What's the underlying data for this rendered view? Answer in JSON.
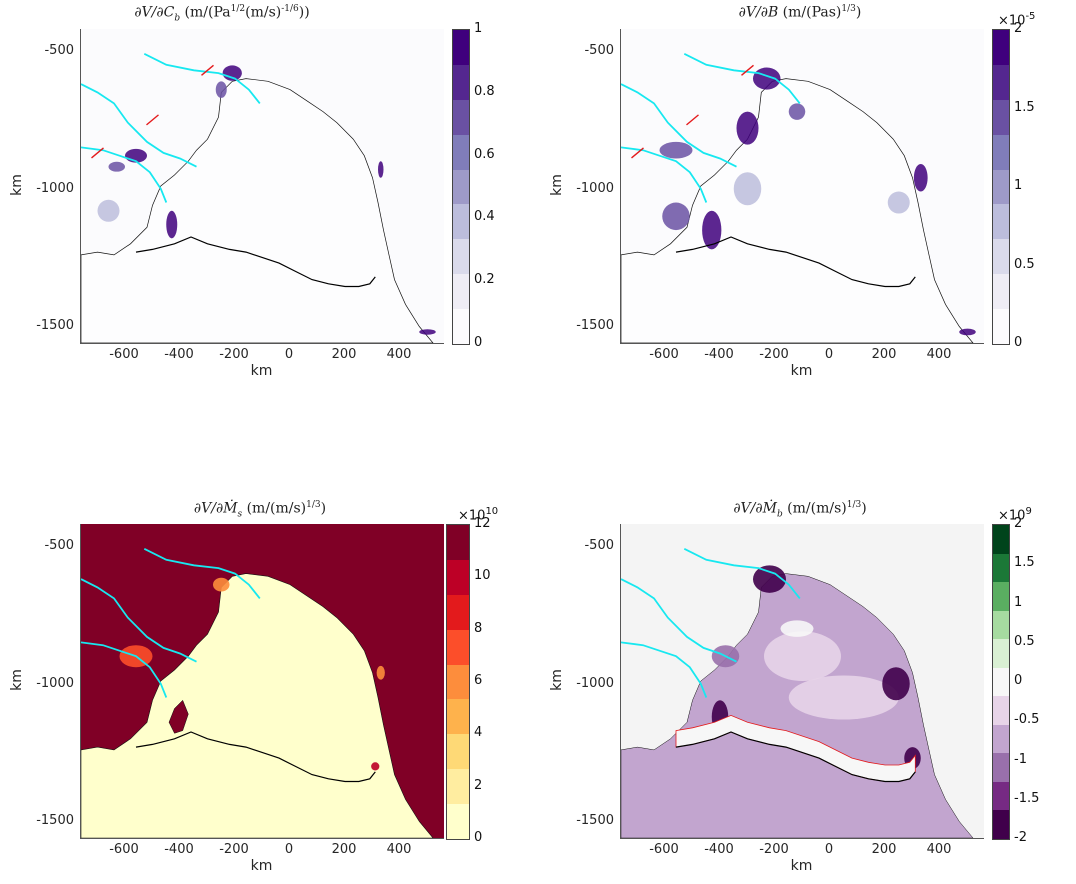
{
  "chart_data": [
    {
      "type": "heatmap",
      "title": "∂V/∂C_b (m/(Pa^{1/2}(m/s)^{-1/6}))",
      "title_display": "∂V/∂C",
      "title_sub": "b",
      "title_units": " (m/(Pa",
      "title_sup1": "1/2",
      "title_units2": "(m/s)",
      "title_sup2": "-1/6",
      "title_units3": "))",
      "xlabel": "km",
      "ylabel": "km",
      "xticks": [
        "-600",
        "-400",
        "-200",
        "0",
        "200",
        "400"
      ],
      "yticks": [
        "-500",
        "-1000",
        "-1500"
      ],
      "xlim": [
        -760,
        560
      ],
      "ylim": [
        -1560,
        -420
      ],
      "colorbar": {
        "min": 0,
        "max": 1,
        "ticks": [
          "0",
          "0.2",
          "0.4",
          "0.6",
          "0.8",
          "1"
        ],
        "exponent": "",
        "colors": [
          "#fcfbfd",
          "#efedf5",
          "#dadaeb",
          "#bcbddc",
          "#9e9ac8",
          "#807dba",
          "#6a51a3",
          "#54278f",
          "#3f007d"
        ]
      },
      "background": "#fbfbfd"
    },
    {
      "type": "heatmap",
      "title": "∂V/∂B (m/(Pas)^{1/3})",
      "title_display": "∂V/∂B",
      "title_units": " (m/(Pas)",
      "title_sup1": "1/3",
      "title_units2": ")",
      "xlabel": "km",
      "ylabel": "km",
      "xticks": [
        "-600",
        "-400",
        "-200",
        "0",
        "200",
        "400"
      ],
      "yticks": [
        "-500",
        "-1000",
        "-1500"
      ],
      "xlim": [
        -760,
        560
      ],
      "ylim": [
        -1560,
        -420
      ],
      "colorbar": {
        "min": 0,
        "max": 2,
        "ticks": [
          "0",
          "0.5",
          "1",
          "1.5",
          "2"
        ],
        "exponent": "×10",
        "exponent_power": "-5",
        "colors": [
          "#fcfbfd",
          "#efedf5",
          "#dadaeb",
          "#bcbddc",
          "#9e9ac8",
          "#807dba",
          "#6a51a3",
          "#54278f",
          "#3f007d"
        ]
      },
      "background": "#fbfbfd"
    },
    {
      "type": "heatmap",
      "title": "∂V/∂M_s (m/(m/s)^{1/3})",
      "title_display": "∂V/∂",
      "title_var": "Ṁ",
      "title_sub": "s",
      "title_units": " (m/(m/s)",
      "title_sup1": "1/3",
      "title_units2": ")",
      "xlabel": "km",
      "ylabel": "km",
      "xticks": [
        "-600",
        "-400",
        "-200",
        "0",
        "200",
        "400"
      ],
      "yticks": [
        "-500",
        "-1000",
        "-1500"
      ],
      "xlim": [
        -760,
        560
      ],
      "ylim": [
        -1560,
        -420
      ],
      "colorbar": {
        "min": 0,
        "max": 12,
        "ticks": [
          "0",
          "2",
          "4",
          "6",
          "8",
          "10",
          "12"
        ],
        "exponent": "×10",
        "exponent_power": "10",
        "colors": [
          "#ffffcc",
          "#ffeda0",
          "#fed976",
          "#feb24c",
          "#fd8d3c",
          "#fc4e2a",
          "#e31a1c",
          "#bd0026",
          "#800026"
        ]
      },
      "background": "#800026",
      "ice_color": "#ffffcc"
    },
    {
      "type": "heatmap",
      "title": "∂V/∂M_b (m/(m/s)^{1/3})",
      "title_display": "∂V/∂",
      "title_var": "Ṁ",
      "title_sub": "b",
      "title_units": " (m/(m/s)",
      "title_sup1": "1/3",
      "title_units2": ")",
      "xlabel": "km",
      "ylabel": "km",
      "xticks": [
        "-600",
        "-400",
        "-200",
        "0",
        "200",
        "400"
      ],
      "yticks": [
        "-500",
        "-1000",
        "-1500"
      ],
      "xlim": [
        -760,
        560
      ],
      "ylim": [
        -1560,
        -420
      ],
      "colorbar": {
        "min": -2,
        "max": 2,
        "ticks": [
          "-2",
          "-1.5",
          "-1",
          "-0.5",
          "0",
          "0.5",
          "1",
          "1.5",
          "2"
        ],
        "exponent": "×10",
        "exponent_power": "9",
        "colors": [
          "#40004b",
          "#762a83",
          "#9970ab",
          "#c2a5cf",
          "#e7d4e8",
          "#f7f7f7",
          "#d9f0d3",
          "#a6dba0",
          "#5aae61",
          "#1b7837",
          "#00441b"
        ]
      },
      "background": "#f4f4f4"
    }
  ],
  "colors": {
    "flowline": "#17e8f0",
    "grounding_line": "#000000",
    "marker": "#e41a1c"
  }
}
